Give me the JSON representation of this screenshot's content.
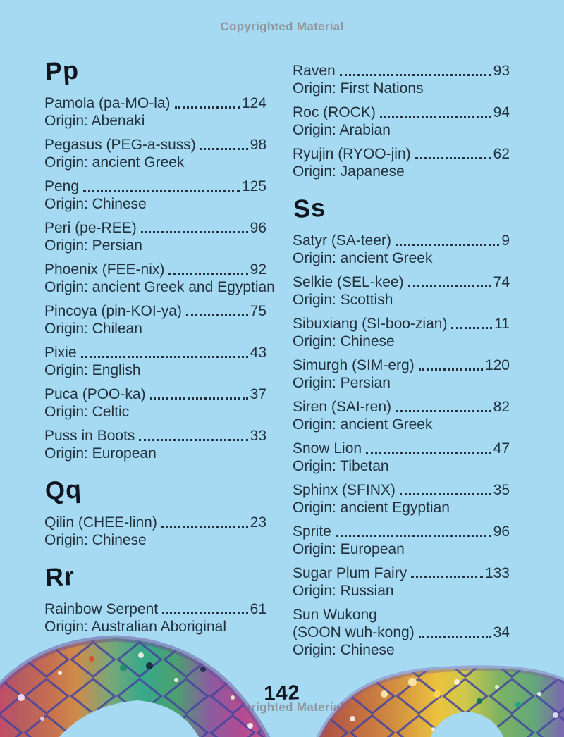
{
  "watermark_top": "Copyrighted Material",
  "watermark_bottom": "Copyrighted Material",
  "page_number": "142",
  "colors": {
    "background": "#a6daf3",
    "ink": "#22313c",
    "header_ink": "#10161f",
    "watermark": "#8f979c",
    "serpent_net": "#4444a0",
    "serpent_palette": [
      "#cf3f6e",
      "#c56f50",
      "#cf8b4a",
      "#37a88b",
      "#8a5da0",
      "#b44a90",
      "#a84a48",
      "#ecc23e",
      "#7bb264",
      "#8a63a8"
    ]
  },
  "columns": [
    {
      "sections": [
        {
          "letter": "Pp",
          "entries": [
            {
              "name": "Pamola (pa-MO-la)",
              "page": "124",
              "origin": "Origin: Abenaki"
            },
            {
              "name": "Pegasus (PEG-a-suss)",
              "page": "98",
              "origin": "Origin: ancient Greek"
            },
            {
              "name": "Peng",
              "page": "125",
              "origin": "Origin: Chinese"
            },
            {
              "name": "Peri (pe-REE)",
              "page": "96",
              "origin": "Origin: Persian"
            },
            {
              "name": "Phoenix (FEE-nix)",
              "page": "92",
              "origin": "Origin: ancient Greek and Egyptian"
            },
            {
              "name": "Pincoya (pin-KOI-ya)",
              "page": "75",
              "origin": "Origin: Chilean"
            },
            {
              "name": "Pixie",
              "page": "43",
              "origin": "Origin: English"
            },
            {
              "name": "Puca (POO-ka)",
              "page": "37",
              "origin": "Origin: Celtic"
            },
            {
              "name": "Puss in Boots",
              "page": "33",
              "origin": "Origin: European"
            }
          ]
        },
        {
          "letter": "Qq",
          "entries": [
            {
              "name": "Qilin (CHEE-linn)",
              "page": "23",
              "origin": "Origin: Chinese"
            }
          ]
        },
        {
          "letter": "Rr",
          "entries": [
            {
              "name": "Rainbow Serpent",
              "page": "61",
              "origin": "Origin: Australian Aboriginal"
            }
          ]
        }
      ]
    },
    {
      "sections": [
        {
          "letter": "",
          "entries": [
            {
              "name": "Raven",
              "page": "93",
              "origin": "Origin: First Nations"
            },
            {
              "name": "Roc (ROCK)",
              "page": "94",
              "origin": "Origin: Arabian"
            },
            {
              "name": "Ryujin (RYOO-jin)",
              "page": "62",
              "origin": "Origin: Japanese"
            }
          ]
        },
        {
          "letter": "Ss",
          "entries": [
            {
              "name": "Satyr (SA-teer)",
              "page": "9",
              "origin": "Origin: ancient Greek"
            },
            {
              "name": "Selkie (SEL-kee)",
              "page": "74",
              "origin": "Origin: Scottish"
            },
            {
              "name": "Sibuxiang (SI-boo-zian)",
              "page": "11",
              "origin": "Origin: Chinese"
            },
            {
              "name": "Simurgh (SIM-erg)",
              "page": "120",
              "origin": "Origin: Persian"
            },
            {
              "name": "Siren (SAI-ren)",
              "page": "82",
              "origin": "Origin: ancient Greek"
            },
            {
              "name": "Snow Lion",
              "page": "47",
              "origin": "Origin: Tibetan"
            },
            {
              "name": "Sphinx (SFINX)",
              "page": "35",
              "origin": "Origin: ancient Egyptian"
            },
            {
              "name": "Sprite",
              "page": "96",
              "origin": "Origin: European"
            },
            {
              "name": "Sugar Plum Fairy",
              "page": "133",
              "origin": "Origin: Russian"
            },
            {
              "name": "Sun Wukong",
              "name_line2": "(SOON wuh-kong)",
              "page": "34",
              "origin": "Origin: Chinese"
            }
          ]
        }
      ]
    }
  ],
  "illustration": {
    "name": "rainbow-serpent-tail-arches"
  }
}
